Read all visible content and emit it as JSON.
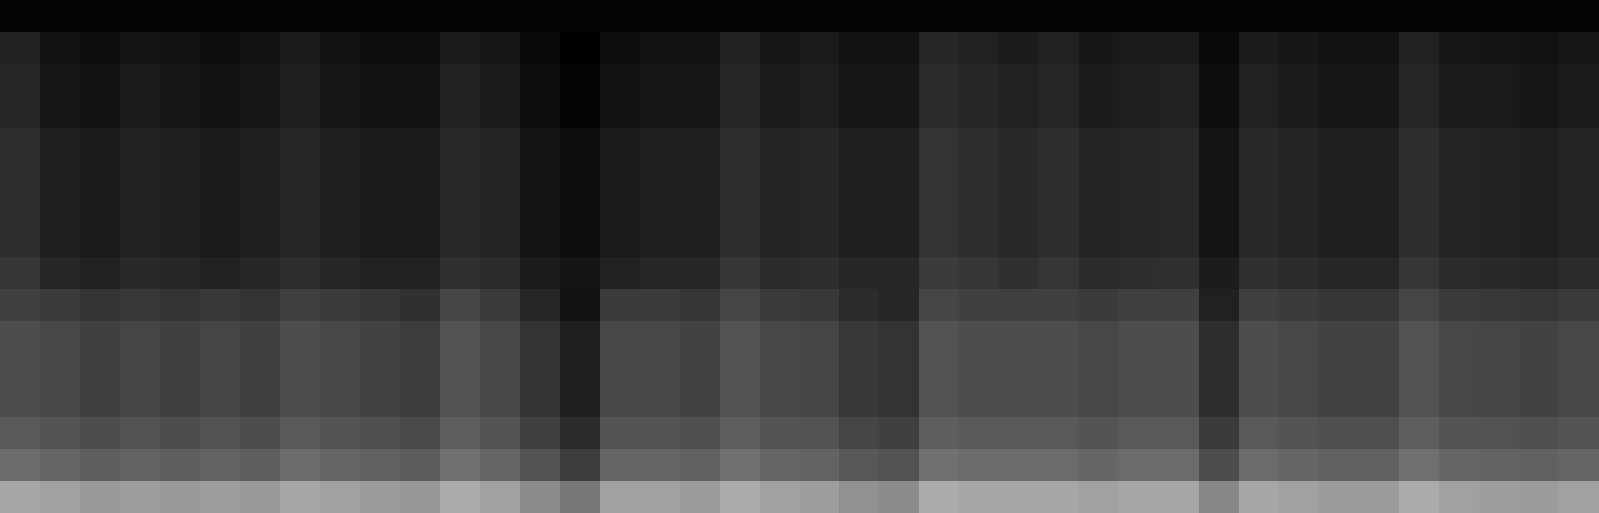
{
  "chart_data": {
    "type": "heatmap",
    "tick_labels": false,
    "grid": false,
    "colors": [
      "#000000",
      "#ffffff"
    ],
    "xlim": [
      -0.5,
      39.5
    ],
    "ylim": [
      -0.5,
      15.5
    ],
    "zlim": [
      0,
      1
    ],
    "cells": [
      [
        0.65,
        0.63,
        0.6,
        0.62,
        0.6,
        0.62,
        0.6,
        0.65,
        0.63,
        0.61,
        0.59,
        0.67,
        0.63,
        0.55,
        0.47,
        0.63,
        0.63,
        0.61,
        0.67,
        0.63,
        0.62,
        0.57,
        0.55,
        0.67,
        0.65,
        0.65,
        0.65,
        0.63,
        0.65,
        0.65,
        0.53,
        0.65,
        0.63,
        0.61,
        0.61,
        0.67,
        0.63,
        0.62,
        0.61,
        0.63
      ],
      [
        0.42,
        0.4,
        0.37,
        0.39,
        0.37,
        0.39,
        0.37,
        0.42,
        0.4,
        0.38,
        0.36,
        0.44,
        0.4,
        0.32,
        0.24,
        0.4,
        0.4,
        0.38,
        0.44,
        0.4,
        0.39,
        0.34,
        0.32,
        0.44,
        0.42,
        0.42,
        0.42,
        0.4,
        0.42,
        0.42,
        0.3,
        0.42,
        0.4,
        0.38,
        0.38,
        0.44,
        0.4,
        0.39,
        0.38,
        0.4
      ],
      [
        0.35,
        0.33,
        0.3,
        0.32,
        0.3,
        0.32,
        0.3,
        0.35,
        0.33,
        0.31,
        0.29,
        0.37,
        0.33,
        0.25,
        0.17,
        0.33,
        0.33,
        0.31,
        0.37,
        0.33,
        0.32,
        0.27,
        0.25,
        0.37,
        0.35,
        0.35,
        0.35,
        0.33,
        0.35,
        0.35,
        0.23,
        0.35,
        0.33,
        0.31,
        0.31,
        0.37,
        0.33,
        0.32,
        0.31,
        0.33
      ],
      [
        0.3,
        0.28,
        0.25,
        0.27,
        0.25,
        0.27,
        0.25,
        0.3,
        0.28,
        0.26,
        0.24,
        0.32,
        0.28,
        0.2,
        0.12,
        0.28,
        0.28,
        0.26,
        0.32,
        0.28,
        0.27,
        0.22,
        0.2,
        0.32,
        0.3,
        0.3,
        0.3,
        0.28,
        0.3,
        0.3,
        0.18,
        0.3,
        0.28,
        0.26,
        0.26,
        0.32,
        0.28,
        0.27,
        0.26,
        0.28
      ],
      [
        0.3,
        0.28,
        0.25,
        0.27,
        0.25,
        0.27,
        0.25,
        0.3,
        0.28,
        0.26,
        0.24,
        0.32,
        0.28,
        0.2,
        0.12,
        0.28,
        0.28,
        0.26,
        0.32,
        0.28,
        0.27,
        0.22,
        0.2,
        0.32,
        0.3,
        0.3,
        0.3,
        0.28,
        0.3,
        0.3,
        0.18,
        0.3,
        0.28,
        0.26,
        0.26,
        0.32,
        0.28,
        0.27,
        0.26,
        0.28
      ],
      [
        0.3,
        0.28,
        0.25,
        0.27,
        0.25,
        0.27,
        0.25,
        0.3,
        0.28,
        0.26,
        0.24,
        0.32,
        0.28,
        0.2,
        0.12,
        0.28,
        0.28,
        0.26,
        0.32,
        0.28,
        0.27,
        0.22,
        0.2,
        0.32,
        0.3,
        0.3,
        0.3,
        0.28,
        0.3,
        0.3,
        0.18,
        0.3,
        0.28,
        0.26,
        0.26,
        0.32,
        0.28,
        0.27,
        0.26,
        0.28
      ],
      [
        0.25,
        0.23,
        0.2,
        0.22,
        0.2,
        0.22,
        0.2,
        0.25,
        0.23,
        0.21,
        0.19,
        0.27,
        0.23,
        0.15,
        0.07,
        0.23,
        0.23,
        0.21,
        0.27,
        0.23,
        0.22,
        0.17,
        0.15,
        0.27,
        0.25,
        0.25,
        0.25,
        0.23,
        0.25,
        0.25,
        0.13,
        0.25,
        0.23,
        0.21,
        0.21,
        0.27,
        0.23,
        0.22,
        0.21,
        0.23
      ],
      [
        0.21,
        0.15,
        0.13,
        0.16,
        0.15,
        0.13,
        0.15,
        0.18,
        0.15,
        0.13,
        0.13,
        0.19,
        0.17,
        0.11,
        0.08,
        0.13,
        0.15,
        0.15,
        0.21,
        0.17,
        0.18,
        0.15,
        0.15,
        0.23,
        0.21,
        0.19,
        0.21,
        0.17,
        0.18,
        0.19,
        0.11,
        0.19,
        0.17,
        0.15,
        0.15,
        0.21,
        0.17,
        0.16,
        0.15,
        0.17
      ],
      [
        0.18,
        0.12,
        0.1,
        0.13,
        0.12,
        0.1,
        0.12,
        0.15,
        0.12,
        0.1,
        0.1,
        0.16,
        0.14,
        0.08,
        0.05,
        0.1,
        0.12,
        0.12,
        0.18,
        0.14,
        0.15,
        0.12,
        0.12,
        0.2,
        0.18,
        0.16,
        0.18,
        0.14,
        0.15,
        0.16,
        0.08,
        0.16,
        0.14,
        0.12,
        0.12,
        0.18,
        0.14,
        0.13,
        0.12,
        0.14
      ],
      [
        0.18,
        0.12,
        0.1,
        0.13,
        0.12,
        0.1,
        0.12,
        0.15,
        0.12,
        0.1,
        0.1,
        0.16,
        0.14,
        0.08,
        0.05,
        0.1,
        0.12,
        0.12,
        0.18,
        0.14,
        0.15,
        0.12,
        0.12,
        0.2,
        0.18,
        0.16,
        0.18,
        0.14,
        0.15,
        0.16,
        0.08,
        0.16,
        0.14,
        0.12,
        0.12,
        0.18,
        0.14,
        0.13,
        0.12,
        0.14
      ],
      [
        0.18,
        0.12,
        0.1,
        0.13,
        0.12,
        0.1,
        0.12,
        0.15,
        0.12,
        0.1,
        0.1,
        0.16,
        0.14,
        0.08,
        0.05,
        0.1,
        0.12,
        0.12,
        0.18,
        0.14,
        0.15,
        0.12,
        0.12,
        0.2,
        0.18,
        0.16,
        0.18,
        0.14,
        0.15,
        0.16,
        0.08,
        0.16,
        0.14,
        0.12,
        0.12,
        0.18,
        0.14,
        0.13,
        0.12,
        0.14
      ],
      [
        0.18,
        0.12,
        0.1,
        0.13,
        0.12,
        0.1,
        0.12,
        0.15,
        0.12,
        0.1,
        0.1,
        0.16,
        0.14,
        0.08,
        0.05,
        0.1,
        0.12,
        0.12,
        0.18,
        0.14,
        0.15,
        0.12,
        0.12,
        0.2,
        0.18,
        0.16,
        0.18,
        0.14,
        0.15,
        0.16,
        0.08,
        0.16,
        0.14,
        0.12,
        0.12,
        0.18,
        0.14,
        0.13,
        0.12,
        0.14
      ],
      [
        0.15,
        0.09,
        0.07,
        0.1,
        0.09,
        0.07,
        0.09,
        0.12,
        0.09,
        0.07,
        0.07,
        0.13,
        0.11,
        0.05,
        0.02,
        0.07,
        0.09,
        0.09,
        0.15,
        0.11,
        0.12,
        0.09,
        0.09,
        0.17,
        0.15,
        0.13,
        0.15,
        0.11,
        0.12,
        0.13,
        0.05,
        0.13,
        0.11,
        0.09,
        0.09,
        0.15,
        0.11,
        0.1,
        0.09,
        0.11
      ],
      [
        0.15,
        0.09,
        0.07,
        0.1,
        0.09,
        0.07,
        0.09,
        0.12,
        0.09,
        0.07,
        0.07,
        0.13,
        0.11,
        0.05,
        0.02,
        0.07,
        0.09,
        0.09,
        0.15,
        0.11,
        0.12,
        0.09,
        0.09,
        0.17,
        0.15,
        0.13,
        0.15,
        0.11,
        0.12,
        0.13,
        0.05,
        0.13,
        0.11,
        0.09,
        0.09,
        0.15,
        0.11,
        0.1,
        0.09,
        0.11
      ],
      [
        0.13,
        0.07,
        0.05,
        0.08,
        0.07,
        0.05,
        0.07,
        0.1,
        0.07,
        0.05,
        0.05,
        0.11,
        0.09,
        0.03,
        0.0,
        0.05,
        0.07,
        0.07,
        0.13,
        0.09,
        0.1,
        0.07,
        0.07,
        0.15,
        0.13,
        0.11,
        0.13,
        0.09,
        0.1,
        0.11,
        0.03,
        0.11,
        0.09,
        0.07,
        0.07,
        0.13,
        0.09,
        0.08,
        0.07,
        0.09
      ],
      [
        0.02,
        0.02,
        0.02,
        0.02,
        0.02,
        0.02,
        0.02,
        0.02,
        0.02,
        0.02,
        0.02,
        0.02,
        0.02,
        0.02,
        0.02,
        0.02,
        0.02,
        0.02,
        0.02,
        0.02,
        0.02,
        0.02,
        0.02,
        0.02,
        0.02,
        0.02,
        0.02,
        0.02,
        0.02,
        0.02,
        0.02,
        0.02,
        0.02,
        0.02,
        0.02,
        0.02,
        0.02,
        0.02,
        0.02,
        0.02
      ]
    ]
  }
}
